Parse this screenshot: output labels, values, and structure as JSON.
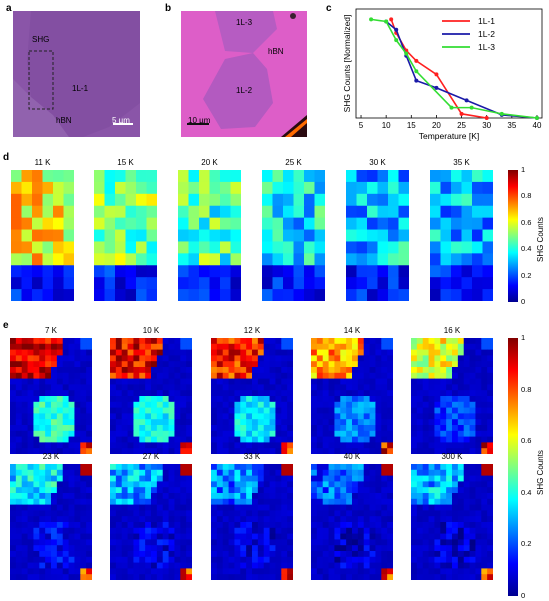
{
  "panels": {
    "a": {
      "label": "a",
      "texts": {
        "shg": "SHG",
        "flake": "1L-1",
        "substrate": "hBN",
        "scale": "5 µm"
      }
    },
    "b": {
      "label": "b",
      "texts": {
        "flake_top": "1L-3",
        "substrate": "hBN",
        "flake_center": "1L-2",
        "scale": "10 µm"
      }
    },
    "c": {
      "label": "c"
    },
    "d": {
      "label": "d",
      "temps": [
        "11 K",
        "15 K",
        "20 K",
        "25 K",
        "30 K",
        "35 K"
      ],
      "colorbar": {
        "label": "SHG Counts",
        "ticks": [
          "1",
          "0.8",
          "0.6",
          "0.4",
          "0.2",
          "0"
        ]
      }
    },
    "e": {
      "label": "e",
      "temps_row1": [
        "7 K",
        "10 K",
        "12 K",
        "14 K",
        "16 K"
      ],
      "temps_row2": [
        "23 K",
        "27 K",
        "33 K",
        "40 K",
        "300 K"
      ],
      "colorbar": {
        "label": "SHG Counts",
        "ticks": [
          "1",
          "0.8",
          "0.6",
          "0.4",
          "0.2",
          "0"
        ]
      }
    }
  },
  "chart_data": {
    "type": "line",
    "title": "",
    "xlabel": "Temperature [K]",
    "ylabel": "SHG Counts [Normalized]",
    "xlim": [
      4,
      41
    ],
    "ylim": [
      0,
      1.05
    ],
    "xticks": [
      5,
      10,
      15,
      20,
      25,
      30,
      35,
      40
    ],
    "legend_position": "top-right",
    "grid": false,
    "series": [
      {
        "name": "1L-1",
        "color": "#ff2020",
        "x": [
          11,
          12,
          14,
          16,
          20,
          25,
          30
        ],
        "y": [
          0.95,
          0.82,
          0.65,
          0.55,
          0.42,
          0.04,
          0.0
        ]
      },
      {
        "name": "1L-2",
        "color": "#1a1aa8",
        "x": [
          10,
          12,
          14,
          16,
          20,
          26,
          33,
          40
        ],
        "y": [
          0.93,
          0.85,
          0.6,
          0.36,
          0.29,
          0.17,
          0.03,
          0.0
        ]
      },
      {
        "name": "1L-3",
        "color": "#33dd33",
        "x": [
          7,
          10,
          12,
          14,
          16,
          23,
          27,
          33,
          40
        ],
        "y": [
          0.95,
          0.93,
          0.75,
          0.62,
          0.45,
          0.1,
          0.1,
          0.04,
          0.0
        ]
      }
    ]
  }
}
